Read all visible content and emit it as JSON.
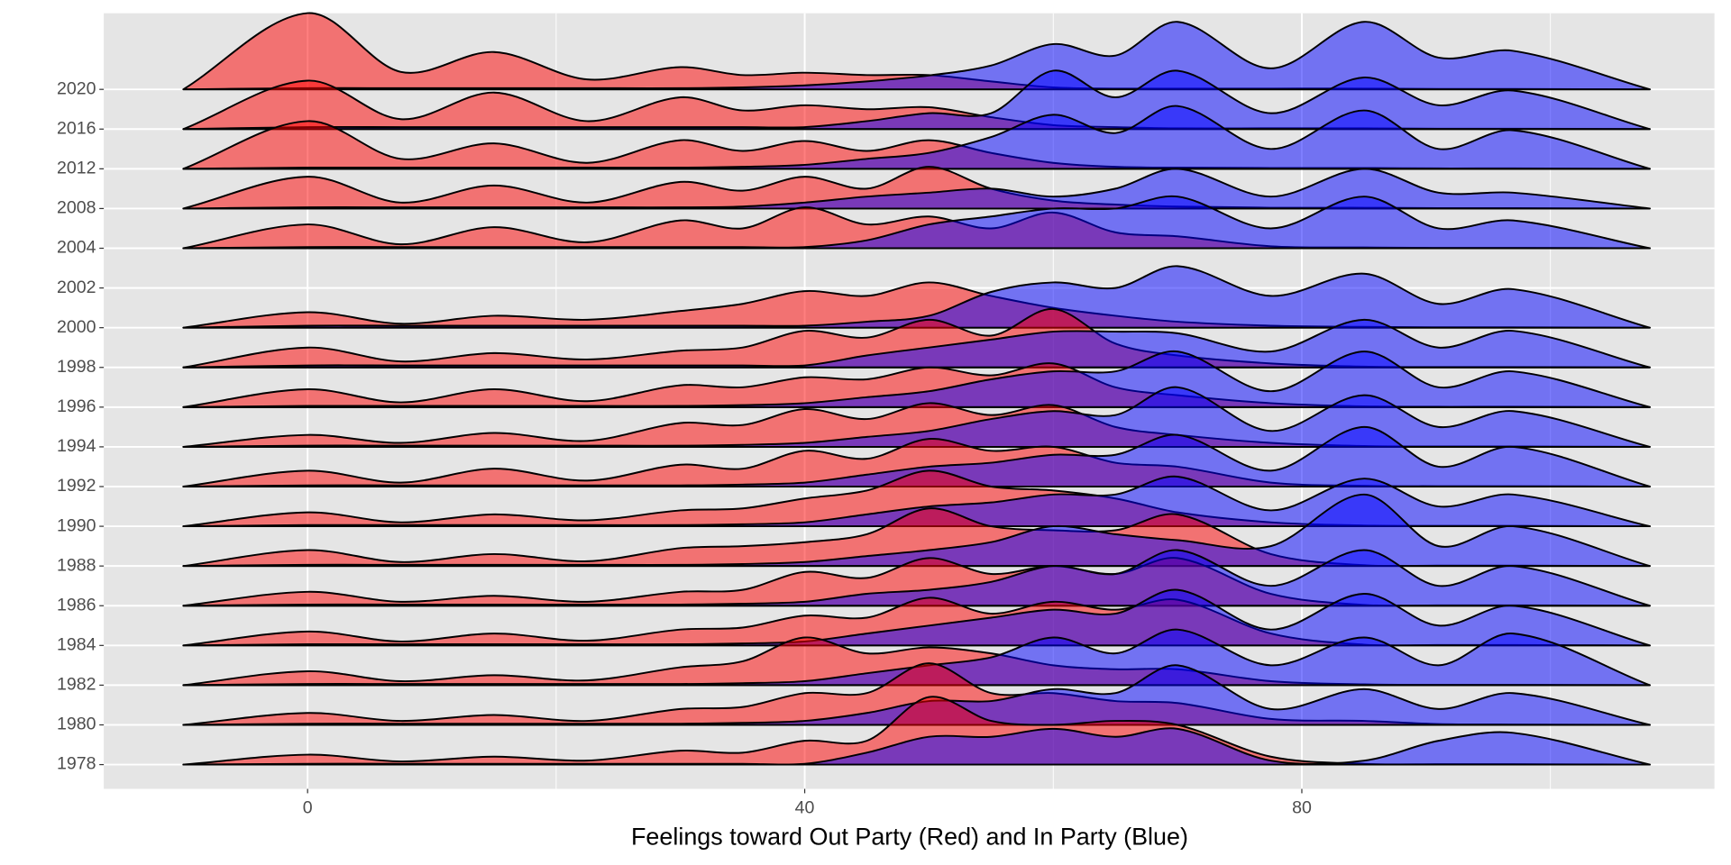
{
  "chart_data": {
    "type": "ridgeline",
    "x_label": "Feelings toward Out Party (Red) and In Party (Blue)",
    "categories": [
      "1978",
      "1980",
      "1982",
      "1984",
      "1986",
      "1988",
      "1990",
      "1992",
      "1994",
      "1996",
      "1998",
      "2000",
      "2002",
      "2004",
      "2008",
      "2012",
      "2016",
      "2020"
    ],
    "x": [
      -10,
      0,
      7.5,
      15,
      22.5,
      30,
      35,
      40,
      45,
      50,
      55,
      60,
      65,
      70,
      77.5,
      85,
      91,
      97,
      108
    ],
    "xlim": [
      -16.4,
      113.2
    ],
    "xticks": [
      0,
      40,
      80
    ],
    "xminor": [
      20,
      60,
      100
    ],
    "grid": true,
    "series": [
      {
        "color": "red",
        "opacity": 0.5,
        "values": [
          [
            0,
            0.25,
            0.08,
            0.2,
            0.1,
            0.35,
            0.3,
            0.6,
            0.6,
            1.7,
            1.1,
            1.0,
            1.1,
            1.0,
            0.2,
            0.02,
            0.01,
            0.01,
            0
          ],
          [
            0,
            0.3,
            0.1,
            0.25,
            0.1,
            0.4,
            0.45,
            0.8,
            0.8,
            1.55,
            0.8,
            0.8,
            0.6,
            0.55,
            0.15,
            0.1,
            0.02,
            0.01,
            0
          ],
          [
            0,
            0.35,
            0.1,
            0.25,
            0.12,
            0.45,
            0.6,
            1.2,
            0.8,
            0.95,
            0.8,
            0.5,
            0.4,
            0.4,
            0.1,
            0.02,
            0.01,
            0.01,
            0
          ],
          [
            0,
            0.35,
            0.1,
            0.3,
            0.12,
            0.4,
            0.45,
            0.75,
            0.7,
            1.2,
            0.8,
            1.1,
            0.9,
            1.15,
            0.3,
            0.02,
            0.01,
            0.01,
            0
          ],
          [
            0,
            0.35,
            0.1,
            0.25,
            0.1,
            0.35,
            0.4,
            0.85,
            0.7,
            1.2,
            0.8,
            1.0,
            0.8,
            1.2,
            0.3,
            0.02,
            0.01,
            0.01,
            0
          ],
          [
            0,
            0.4,
            0.1,
            0.3,
            0.12,
            0.45,
            0.5,
            0.6,
            0.8,
            1.45,
            1.0,
            0.9,
            0.9,
            1.3,
            0.3,
            0.02,
            0.01,
            0.01,
            0
          ],
          [
            0,
            0.35,
            0.1,
            0.3,
            0.15,
            0.4,
            0.45,
            0.7,
            0.9,
            1.4,
            1.0,
            0.9,
            0.7,
            0.35,
            0.1,
            0.02,
            0.01,
            0.01,
            0
          ],
          [
            0,
            0.4,
            0.1,
            0.45,
            0.15,
            0.55,
            0.45,
            0.9,
            0.7,
            1.2,
            0.9,
            1.0,
            0.6,
            0.5,
            0.1,
            0.02,
            0.01,
            0.01,
            0
          ],
          [
            0,
            0.3,
            0.1,
            0.35,
            0.15,
            0.6,
            0.55,
            0.95,
            0.7,
            1.1,
            0.8,
            1.05,
            0.5,
            0.3,
            0.1,
            0.02,
            0.01,
            0.01,
            0
          ],
          [
            0,
            0.45,
            0.12,
            0.45,
            0.15,
            0.55,
            0.5,
            0.75,
            0.7,
            1.0,
            0.8,
            1.1,
            0.5,
            0.3,
            0.1,
            0.02,
            0.01,
            0.01,
            0
          ],
          [
            0,
            0.5,
            0.15,
            0.36,
            0.2,
            0.42,
            0.5,
            0.92,
            0.75,
            1.2,
            0.8,
            1.47,
            0.6,
            0.3,
            0.1,
            0.02,
            0.01,
            0.01,
            0
          ],
          [
            0,
            0.39,
            0.1,
            0.3,
            0.2,
            0.42,
            0.6,
            0.92,
            0.8,
            1.14,
            0.8,
            0.5,
            0.3,
            0.15,
            0.05,
            0.02,
            0.01,
            0.01,
            0
          ],
          null,
          [
            0,
            0.6,
            0.1,
            0.53,
            0.15,
            0.7,
            0.5,
            1.03,
            0.6,
            0.8,
            0.5,
            0.9,
            0.4,
            0.3,
            0.05,
            0.02,
            0.01,
            0.01,
            0
          ],
          [
            0,
            0.8,
            0.15,
            0.58,
            0.15,
            0.67,
            0.45,
            0.8,
            0.5,
            1.05,
            0.5,
            0.2,
            0.1,
            0.05,
            0.02,
            0.02,
            0.01,
            0.01,
            0
          ],
          [
            0,
            1.2,
            0.25,
            0.64,
            0.15,
            0.72,
            0.45,
            0.7,
            0.45,
            0.72,
            0.4,
            0.15,
            0.05,
            0.03,
            0.02,
            0.02,
            0.01,
            0.01,
            0
          ],
          [
            0,
            1.22,
            0.25,
            0.92,
            0.2,
            0.8,
            0.47,
            0.6,
            0.5,
            0.55,
            0.3,
            0.1,
            0.05,
            0.02,
            0.02,
            0.02,
            0.01,
            0.01,
            0
          ],
          [
            0,
            1.92,
            0.44,
            0.94,
            0.25,
            0.56,
            0.36,
            0.42,
            0.36,
            0.36,
            0.2,
            0.05,
            0.02,
            0.02,
            0.02,
            0.02,
            0.01,
            0.01,
            0
          ]
        ]
      },
      {
        "color": "blue",
        "opacity": 0.5,
        "values": [
          [
            0,
            0.02,
            0.02,
            0.02,
            0.02,
            0.02,
            0.02,
            0.02,
            0.3,
            0.7,
            0.7,
            0.9,
            0.7,
            0.9,
            0.1,
            0.1,
            0.6,
            0.8,
            0
          ],
          [
            0,
            0.03,
            0.03,
            0.03,
            0.03,
            0.03,
            0.05,
            0.1,
            0.3,
            0.6,
            0.6,
            0.9,
            0.8,
            1.5,
            0.4,
            0.9,
            0.4,
            0.8,
            0
          ],
          [
            0,
            0.03,
            0.03,
            0.03,
            0.03,
            0.03,
            0.05,
            0.1,
            0.3,
            0.5,
            0.7,
            1.2,
            0.8,
            1.4,
            0.5,
            1.2,
            0.5,
            1.3,
            0
          ],
          [
            0,
            0.03,
            0.03,
            0.03,
            0.03,
            0.03,
            0.05,
            0.1,
            0.3,
            0.5,
            0.7,
            0.9,
            0.8,
            1.4,
            0.4,
            1.3,
            0.5,
            1.0,
            0
          ],
          [
            0,
            0.03,
            0.03,
            0.03,
            0.03,
            0.03,
            0.05,
            0.1,
            0.3,
            0.4,
            0.6,
            1.0,
            0.8,
            1.4,
            0.5,
            1.4,
            0.5,
            1.0,
            0
          ],
          [
            0,
            0.03,
            0.03,
            0.03,
            0.03,
            0.03,
            0.05,
            0.1,
            0.25,
            0.4,
            0.6,
            1.0,
            0.8,
            0.65,
            0.5,
            1.8,
            0.5,
            1.0,
            0
          ],
          [
            0,
            0.03,
            0.03,
            0.03,
            0.03,
            0.03,
            0.05,
            0.1,
            0.3,
            0.5,
            0.6,
            0.8,
            0.8,
            1.25,
            0.4,
            1.2,
            0.5,
            0.8,
            0
          ],
          [
            0,
            0.03,
            0.03,
            0.03,
            0.03,
            0.03,
            0.05,
            0.1,
            0.3,
            0.5,
            0.6,
            0.8,
            0.8,
            1.3,
            0.4,
            1.5,
            0.5,
            1.0,
            0
          ],
          [
            0,
            0.03,
            0.03,
            0.03,
            0.03,
            0.03,
            0.05,
            0.1,
            0.25,
            0.4,
            0.7,
            0.9,
            0.8,
            1.5,
            0.4,
            1.3,
            0.5,
            0.9,
            0
          ],
          [
            0,
            0.03,
            0.03,
            0.03,
            0.03,
            0.03,
            0.05,
            0.1,
            0.25,
            0.4,
            0.7,
            0.9,
            0.9,
            1.4,
            0.4,
            1.4,
            0.5,
            0.9,
            0
          ],
          [
            0,
            0.05,
            0.05,
            0.05,
            0.05,
            0.05,
            0.05,
            0.05,
            0.3,
            0.5,
            0.7,
            0.9,
            0.9,
            0.86,
            0.4,
            1.2,
            0.5,
            0.92,
            0
          ],
          [
            0,
            0.05,
            0.05,
            0.05,
            0.05,
            0.05,
            0.05,
            0.05,
            0.15,
            0.3,
            0.9,
            1.14,
            1.0,
            1.55,
            0.8,
            1.36,
            0.6,
            0.97,
            0
          ],
          null,
          [
            0,
            0.03,
            0.03,
            0.03,
            0.03,
            0.03,
            0.03,
            0.03,
            0.2,
            0.6,
            0.8,
            1.0,
            1.0,
            1.3,
            0.5,
            1.3,
            0.5,
            0.7,
            0
          ],
          [
            0,
            0.03,
            0.03,
            0.03,
            0.03,
            0.03,
            0.05,
            0.15,
            0.3,
            0.4,
            0.5,
            0.3,
            0.5,
            1.0,
            0.3,
            1.0,
            0.4,
            0.4,
            0
          ],
          [
            0,
            0.03,
            0.03,
            0.03,
            0.03,
            0.03,
            0.05,
            0.1,
            0.25,
            0.4,
            0.8,
            1.36,
            0.9,
            1.58,
            0.5,
            1.47,
            0.5,
            0.97,
            0
          ],
          [
            0,
            0.05,
            0.05,
            0.05,
            0.05,
            0.05,
            0.05,
            0.05,
            0.2,
            0.4,
            0.4,
            1.47,
            0.8,
            1.47,
            0.4,
            1.3,
            0.6,
            0.97,
            0
          ],
          [
            0,
            0.03,
            0.03,
            0.03,
            0.03,
            0.03,
            0.05,
            0.1,
            0.2,
            0.35,
            0.6,
            1.14,
            0.85,
            1.7,
            0.53,
            1.7,
            0.8,
            0.97,
            0
          ]
        ]
      }
    ]
  }
}
